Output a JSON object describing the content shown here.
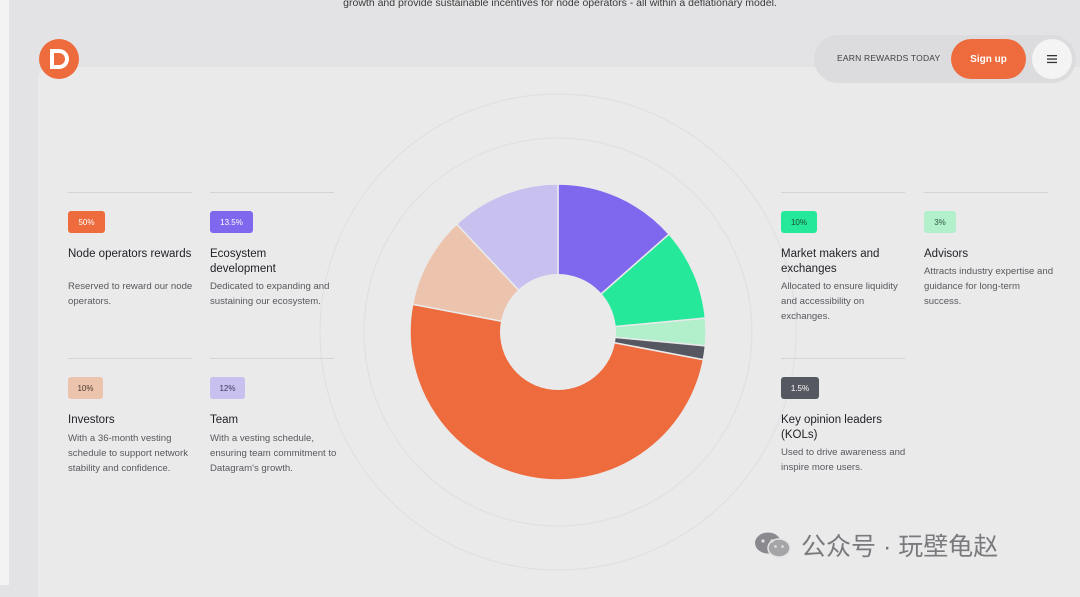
{
  "top_text": "growth and provide sustainable incentives for node operators - all within a deflationary model.",
  "header": {
    "earn_label": "EARN REWARDS TODAY",
    "signup_label": "Sign up"
  },
  "colors": {
    "accent": "#ee6b3d",
    "node_operators": "#ee6b3d",
    "ecosystem": "#7f68ee",
    "market_makers": "#26e89a",
    "advisors": "#b2efcb",
    "kols": "#555761",
    "investors": "#ecc3ac",
    "team": "#c8c0ee"
  },
  "cards": [
    {
      "badge": "50%",
      "title": "Node operators rewards",
      "desc": "Reserved to reward our node operators."
    },
    {
      "badge": "13.5%",
      "title": "Ecosystem development",
      "desc": "Dedicated to expanding and sustaining our ecosystem."
    },
    {
      "badge": "10%",
      "title": "Investors",
      "desc": "With a 36-month vesting schedule to support network stability and confidence."
    },
    {
      "badge": "12%",
      "title": "Team",
      "desc": "With a vesting schedule, ensuring team commitment to Datagram's growth."
    },
    {
      "badge": "10%",
      "title": "Market makers and exchanges",
      "desc": "Allocated to ensure liquidity and accessibility on exchanges."
    },
    {
      "badge": "3%",
      "title": "Advisors",
      "desc": "Attracts industry expertise and guidance for long-term success."
    },
    {
      "badge": "1.5%",
      "title": "Key opinion leaders (KOLs)",
      "desc": "Used to drive awareness and inspire more users."
    }
  ],
  "chart_data": {
    "type": "pie",
    "variant": "donut",
    "title": "",
    "categories": [
      "Ecosystem development",
      "Market makers and exchanges",
      "Advisors",
      "Key opinion leaders (KOLs)",
      "Node operators rewards",
      "Investors",
      "Team"
    ],
    "values": [
      13.5,
      10,
      3,
      1.5,
      50,
      10,
      12
    ],
    "start_angle_deg": 0,
    "direction": "clockwise"
  },
  "watermark": {
    "text": "公众号 · 玩壁龟赵"
  }
}
